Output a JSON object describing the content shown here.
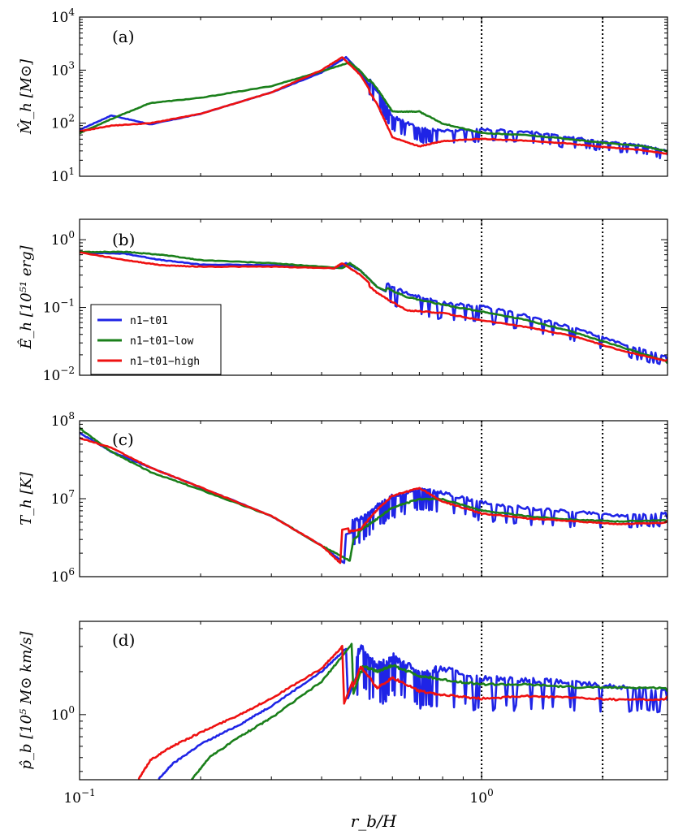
{
  "figure": {
    "legend_entries": [
      "n1−t01",
      "n1−t01−low",
      "n1−t01−high"
    ],
    "colors": {
      "blue": "#1f24e6",
      "green": "#1a7f1a",
      "red": "#ee1111"
    },
    "vlines_x": [
      1.0,
      2.0
    ],
    "xlim": [
      0.1,
      2.9
    ],
    "xticks": [
      {
        "v": 0.1,
        "base": "10",
        "exp": "−1"
      },
      {
        "v": 1.0,
        "base": "10",
        "exp": "0"
      }
    ],
    "xlabel": "r_b/H"
  },
  "chart_data": [
    {
      "type": "line",
      "panel": "(a)",
      "ylabel": "M̂_h [M⊙]",
      "yscale": "log",
      "ylim": [
        10,
        10000
      ],
      "yticks": [
        {
          "v": 10,
          "exp": "1"
        },
        {
          "v": 100,
          "exp": "2"
        },
        {
          "v": 1000,
          "exp": "3"
        },
        {
          "v": 10000,
          "exp": "4"
        }
      ],
      "series": [
        {
          "name": "n1−t01",
          "color": "blue",
          "x": [
            0.1,
            0.12,
            0.15,
            0.2,
            0.3,
            0.4,
            0.46,
            0.5,
            0.55,
            0.6,
            0.7,
            0.8,
            1.0,
            1.3,
            1.6,
            2.0,
            2.5,
            2.9
          ],
          "y": [
            75,
            140,
            95,
            150,
            380,
            900,
            1750,
            900,
            300,
            100,
            60,
            55,
            60,
            55,
            45,
            38,
            32,
            25
          ]
        },
        {
          "name": "n1−t01−low",
          "color": "green",
          "x": [
            0.1,
            0.12,
            0.15,
            0.2,
            0.3,
            0.4,
            0.47,
            0.5,
            0.55,
            0.6,
            0.7,
            0.8,
            1.0,
            1.3,
            1.6,
            2.0,
            2.5,
            2.9
          ],
          "y": [
            65,
            120,
            240,
            300,
            500,
            950,
            1400,
            950,
            400,
            150,
            150,
            90,
            60,
            55,
            48,
            40,
            35,
            28
          ]
        },
        {
          "name": "n1−t01−high",
          "color": "red",
          "x": [
            0.1,
            0.12,
            0.15,
            0.2,
            0.3,
            0.4,
            0.45,
            0.5,
            0.55,
            0.6,
            0.7,
            0.8,
            1.0,
            1.3,
            1.6,
            2.0,
            2.5,
            2.9
          ],
          "y": [
            70,
            90,
            100,
            150,
            380,
            1000,
            1750,
            800,
            250,
            60,
            40,
            50,
            55,
            50,
            45,
            38,
            33,
            28
          ]
        }
      ]
    },
    {
      "type": "line",
      "panel": "(b)",
      "ylabel": "Ê_h [10⁵¹ erg]",
      "yscale": "log",
      "ylim": [
        0.01,
        2.0
      ],
      "yticks": [
        {
          "v": 0.01,
          "exp": "−2"
        },
        {
          "v": 0.1,
          "exp": "−1"
        },
        {
          "v": 1.0,
          "exp": "0"
        }
      ],
      "series": [
        {
          "name": "n1−t01",
          "color": "blue",
          "x": [
            0.1,
            0.13,
            0.16,
            0.2,
            0.3,
            0.44,
            0.46,
            0.5,
            0.55,
            0.65,
            0.8,
            1.0,
            1.3,
            1.7,
            2.2,
            2.9
          ],
          "y": [
            0.65,
            0.62,
            0.5,
            0.43,
            0.42,
            0.38,
            0.45,
            0.35,
            0.2,
            0.12,
            0.09,
            0.08,
            0.06,
            0.04,
            0.025,
            0.016
          ]
        },
        {
          "name": "n1−t01−low",
          "color": "green",
          "x": [
            0.1,
            0.13,
            0.16,
            0.2,
            0.3,
            0.45,
            0.47,
            0.5,
            0.55,
            0.65,
            0.8,
            1.0,
            1.3,
            1.7,
            2.2,
            2.9
          ],
          "y": [
            0.66,
            0.66,
            0.6,
            0.5,
            0.45,
            0.38,
            0.45,
            0.35,
            0.2,
            0.13,
            0.1,
            0.08,
            0.06,
            0.04,
            0.025,
            0.015
          ]
        },
        {
          "name": "n1−t01−high",
          "color": "red",
          "x": [
            0.1,
            0.13,
            0.16,
            0.2,
            0.3,
            0.43,
            0.45,
            0.5,
            0.55,
            0.65,
            0.8,
            1.0,
            1.3,
            1.7,
            2.2,
            2.9
          ],
          "y": [
            0.65,
            0.5,
            0.42,
            0.4,
            0.4,
            0.38,
            0.45,
            0.3,
            0.18,
            0.1,
            0.09,
            0.07,
            0.055,
            0.04,
            0.025,
            0.017
          ]
        }
      ]
    },
    {
      "type": "line",
      "panel": "(c)",
      "ylabel": "T_h [K]",
      "yscale": "log",
      "ylim": [
        1000000,
        100000000
      ],
      "yticks": [
        {
          "v": 1000000,
          "exp": "6"
        },
        {
          "v": 10000000,
          "exp": "7"
        },
        {
          "v": 100000000,
          "exp": "8"
        }
      ],
      "series": [
        {
          "name": "n1−t01",
          "color": "blue",
          "x": [
            0.1,
            0.12,
            0.15,
            0.2,
            0.3,
            0.4,
            0.455,
            0.46,
            0.5,
            0.55,
            0.6,
            0.7,
            0.8,
            1.0,
            1.3,
            1.7,
            2.2,
            2.9
          ],
          "y": [
            70000000,
            40000000,
            25000000,
            14000000,
            6000000,
            2500000,
            1500000,
            3500000,
            4000000,
            6000000,
            8000000,
            10000000,
            9000000,
            7000000,
            6000000,
            5500000,
            5000000,
            5500000
          ]
        },
        {
          "name": "n1−t01−low",
          "color": "green",
          "x": [
            0.1,
            0.12,
            0.15,
            0.2,
            0.3,
            0.4,
            0.47,
            0.48,
            0.5,
            0.55,
            0.6,
            0.7,
            0.8,
            1.0,
            1.3,
            1.7,
            2.2,
            2.9
          ],
          "y": [
            80000000,
            40000000,
            22000000,
            13000000,
            6000000,
            2500000,
            1600000,
            3000000,
            3500000,
            5000000,
            7000000,
            9000000,
            9000000,
            6500000,
            5500000,
            5000000,
            4800000,
            5000000
          ]
        },
        {
          "name": "n1−t01−high",
          "color": "red",
          "x": [
            0.1,
            0.12,
            0.15,
            0.2,
            0.3,
            0.4,
            0.445,
            0.45,
            0.5,
            0.55,
            0.6,
            0.7,
            0.8,
            1.0,
            1.3,
            1.7,
            2.2,
            2.9
          ],
          "y": [
            60000000,
            45000000,
            25000000,
            14000000,
            6000000,
            2500000,
            1500000,
            4000000,
            4500000,
            8000000,
            12000000,
            15000000,
            10000000,
            7000000,
            6000000,
            5500000,
            5000000,
            5200000
          ]
        }
      ]
    },
    {
      "type": "line",
      "panel": "(d)",
      "ylabel": "p̂_b [10⁵ M⊙ km/s]",
      "yscale": "log",
      "ylim": [
        0.35,
        4.5
      ],
      "yticks": [
        {
          "v": 1.0,
          "exp": "0"
        }
      ],
      "series": [
        {
          "name": "n1−t01",
          "color": "blue",
          "x": [
            0.157,
            0.17,
            0.2,
            0.25,
            0.3,
            0.4,
            0.46,
            0.465,
            0.5,
            0.55,
            0.6,
            0.7,
            0.8,
            1.0,
            1.3,
            1.7,
            2.2,
            2.9
          ],
          "y": [
            0.35,
            0.45,
            0.62,
            0.85,
            1.15,
            2.0,
            2.9,
            1.3,
            2.2,
            1.6,
            1.9,
            1.5,
            1.6,
            1.4,
            1.4,
            1.35,
            1.3,
            1.25
          ]
        },
        {
          "name": "n1−t01−low",
          "color": "green",
          "x": [
            0.19,
            0.21,
            0.25,
            0.3,
            0.4,
            0.475,
            0.48,
            0.5,
            0.55,
            0.6,
            0.7,
            0.8,
            1.0,
            1.3,
            1.7,
            2.2,
            2.9
          ],
          "y": [
            0.35,
            0.5,
            0.7,
            0.95,
            1.7,
            3.1,
            1.4,
            2.0,
            1.8,
            2.0,
            1.7,
            1.6,
            1.5,
            1.5,
            1.45,
            1.45,
            1.45
          ]
        },
        {
          "name": "n1−t01−high",
          "color": "red",
          "x": [
            0.14,
            0.15,
            0.17,
            0.2,
            0.25,
            0.3,
            0.4,
            0.45,
            0.455,
            0.5,
            0.55,
            0.6,
            0.7,
            0.8,
            1.0,
            1.3,
            1.7,
            2.2,
            2.9
          ],
          "y": [
            0.35,
            0.48,
            0.6,
            0.75,
            1.0,
            1.3,
            2.1,
            3.0,
            1.2,
            2.4,
            1.7,
            2.0,
            1.6,
            1.5,
            1.4,
            1.45,
            1.4,
            1.35,
            1.35
          ]
        }
      ]
    }
  ]
}
